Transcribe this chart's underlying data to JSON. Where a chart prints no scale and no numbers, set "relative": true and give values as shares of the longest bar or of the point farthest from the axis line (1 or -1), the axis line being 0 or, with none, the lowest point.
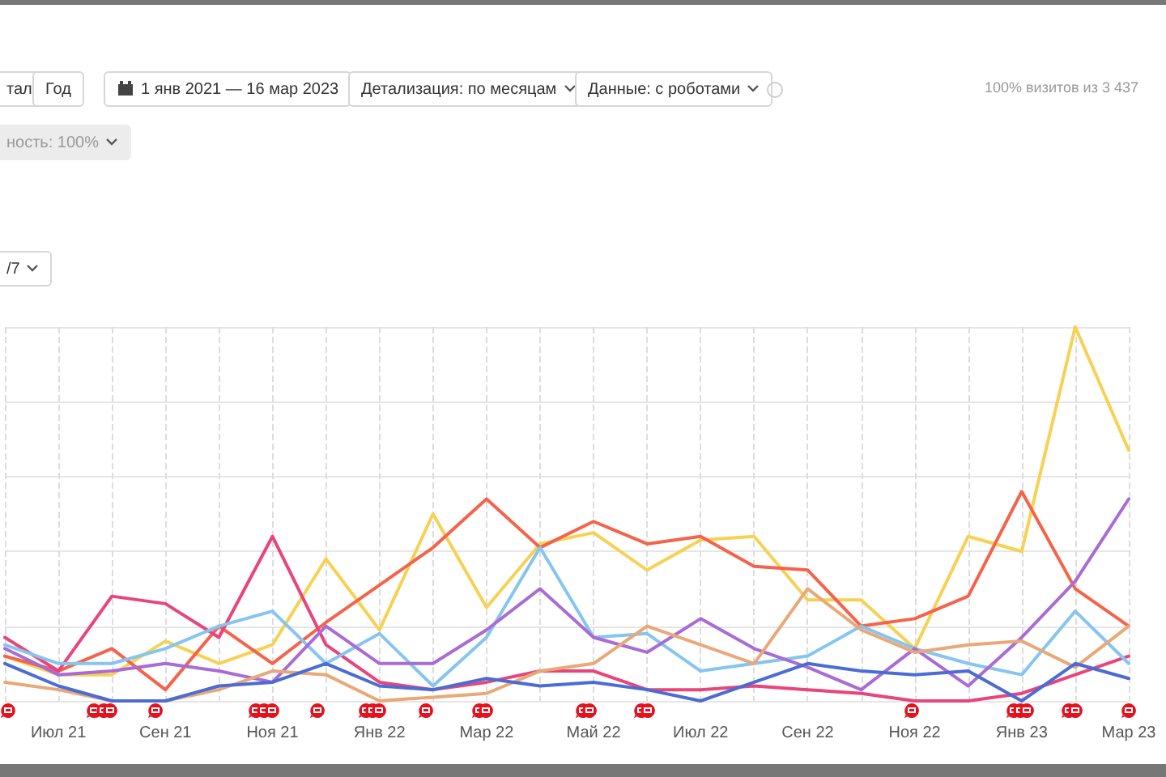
{
  "chart_data": {
    "type": "line",
    "relative": true,
    "grid": true,
    "marker": "none",
    "line_style": "solid",
    "annotations": [
      "тал",
      "Год",
      "1 янв 2021 — 16 мар 2023",
      "Детализация: по месяцам",
      "Данные: с роботами",
      "ность: 100%",
      "/7",
      "100% визитов из 3 437"
    ],
    "categories": [
      null,
      "Июл 21",
      null,
      "Сен 21",
      null,
      "Ноя 21",
      null,
      "Янв 22",
      null,
      "Мар 22",
      null,
      "Май 22",
      null,
      "Июл 22",
      null,
      "Сен 22",
      null,
      "Ноя 22",
      null,
      "Янв 23",
      null,
      "Мар 23"
    ],
    "series": [
      {
        "color": "#f7d154",
        "values": [
          0.12,
          0.07,
          0.07,
          0.16,
          0.1,
          0.15,
          0.38,
          0.19,
          0.5,
          0.25,
          0.42,
          0.45,
          0.35,
          0.43,
          0.44,
          0.27,
          0.27,
          0.14,
          0.44,
          0.4,
          1,
          0.67
        ]
      },
      {
        "color": "#f4634a",
        "values": [
          0.12,
          0.08,
          0.14,
          0.03,
          0.2,
          0.1,
          0.21,
          0.31,
          0.41,
          0.54,
          0.41,
          0.48,
          0.42,
          0.44,
          0.36,
          0.35,
          0.2,
          0.22,
          0.28,
          0.56,
          0.3,
          0.2
        ]
      },
      {
        "color": "#e8457a",
        "values": [
          0.17,
          0.08,
          0.28,
          0.26,
          0.17,
          0.44,
          0.15,
          0.05,
          0.03,
          0.05,
          0.08,
          0.08,
          0.03,
          0.03,
          0.04,
          0.03,
          0.02,
          0,
          0,
          0.02,
          0.07,
          0.12
        ]
      },
      {
        "color": "#86c5ef",
        "values": [
          0.15,
          0.1,
          0.1,
          0.14,
          0.2,
          0.24,
          0.1,
          0.18,
          0.04,
          0.17,
          0.41,
          0.17,
          0.18,
          0.08,
          0.1,
          0.12,
          0.2,
          0.14,
          0.1,
          0.07,
          0.24,
          0.1
        ]
      },
      {
        "color": "#a96bd4",
        "values": [
          0.14,
          0.07,
          0.08,
          0.1,
          0.08,
          0.05,
          0.2,
          0.1,
          0.1,
          0.19,
          0.3,
          0.17,
          0.13,
          0.22,
          0.14,
          0.09,
          0.03,
          0.14,
          0.04,
          0.17,
          0.32,
          0.54
        ]
      },
      {
        "color": "#e9a878",
        "values": [
          0.05,
          0.03,
          0,
          0,
          0.03,
          0.08,
          0.07,
          0,
          0.01,
          0.02,
          0.08,
          0.1,
          0.2,
          0.15,
          0.1,
          0.3,
          0.19,
          0.13,
          0.15,
          0.16,
          0.09,
          0.2
        ]
      },
      {
        "color": "#4a6cd4",
        "values": [
          0.1,
          0.04,
          0,
          0,
          0.04,
          0.05,
          0.1,
          0.04,
          0.03,
          0.06,
          0.04,
          0.05,
          0.03,
          0,
          0.05,
          0.1,
          0.08,
          0.07,
          0.08,
          0,
          0.1,
          0.06
        ]
      }
    ]
  }
}
